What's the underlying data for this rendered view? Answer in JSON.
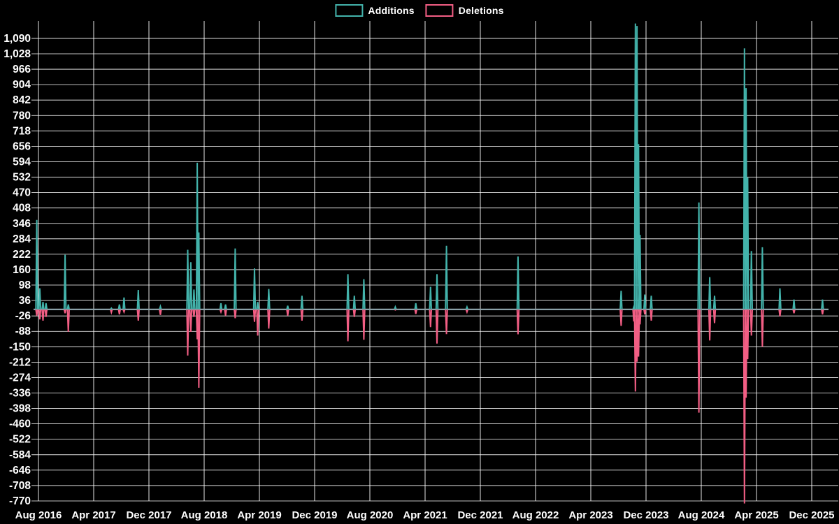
{
  "chart_data": {
    "type": "line",
    "title": "",
    "subtitle": "",
    "background_color": "#000000",
    "grid": true,
    "grid_color": "#ffffff",
    "baseline_color": "#8ba1a8",
    "legend_position": "top-center",
    "y_axis": {
      "min": -770,
      "max": 1090,
      "step": 62,
      "tick_labels_formatted": [
        "1,090",
        "1,028",
        "966",
        "904",
        "842",
        "780",
        "718",
        "656",
        "594",
        "532",
        "470",
        "408",
        "346",
        "284",
        "222",
        "160",
        "98",
        "36",
        "-26",
        "-88",
        "-150",
        "-212",
        "-274",
        "-336",
        "-398",
        "-460",
        "-522",
        "-584",
        "-646",
        "-708",
        "-770"
      ]
    },
    "x_tick_labels": [
      "Aug 2016",
      "Apr 2017",
      "Dec 2017",
      "Aug 2018",
      "Apr 2019",
      "Dec 2019",
      "Aug 2020",
      "Apr 2021",
      "Dec 2021",
      "Aug 2022",
      "Apr 2023",
      "Dec 2023",
      "Aug 2024",
      "Apr 2025",
      "Dec 2025"
    ],
    "series": [
      {
        "name": "Additions",
        "color": "#43b3ab",
        "value_key": "additions"
      },
      {
        "name": "Deletions",
        "color": "#f25e84",
        "value_key": "deletions"
      }
    ],
    "weeks": [
      {
        "date": "2016-07-24",
        "additions": 360,
        "deletions": -25
      },
      {
        "date": "2016-08-07",
        "additions": 85,
        "deletions": -40
      },
      {
        "date": "2016-08-21",
        "additions": 30,
        "deletions": -45
      },
      {
        "date": "2016-09-04",
        "additions": 25,
        "deletions": -30
      },
      {
        "date": "2016-11-27",
        "additions": 220,
        "deletions": -15
      },
      {
        "date": "2016-12-11",
        "additions": 20,
        "deletions": -90
      },
      {
        "date": "2017-06-18",
        "additions": 5,
        "deletions": -12
      },
      {
        "date": "2017-07-23",
        "additions": 20,
        "deletions": -20
      },
      {
        "date": "2017-08-13",
        "additions": 48,
        "deletions": -10
      },
      {
        "date": "2017-10-15",
        "additions": 78,
        "deletions": -45
      },
      {
        "date": "2018-01-21",
        "additions": 12,
        "deletions": -22
      },
      {
        "date": "2018-05-20",
        "additions": 240,
        "deletions": -185
      },
      {
        "date": "2018-06-03",
        "additions": 190,
        "deletions": -90
      },
      {
        "date": "2018-06-17",
        "additions": 80,
        "deletions": -30
      },
      {
        "date": "2018-07-01",
        "additions": 590,
        "deletions": -120
      },
      {
        "date": "2018-07-08",
        "additions": 310,
        "deletions": -315
      },
      {
        "date": "2018-10-14",
        "additions": 25,
        "deletions": -10
      },
      {
        "date": "2018-11-04",
        "additions": 20,
        "deletions": -25
      },
      {
        "date": "2018-12-16",
        "additions": 245,
        "deletions": -35
      },
      {
        "date": "2019-03-10",
        "additions": 165,
        "deletions": -50
      },
      {
        "date": "2019-03-24",
        "additions": 30,
        "deletions": -105
      },
      {
        "date": "2019-05-12",
        "additions": 82,
        "deletions": -77
      },
      {
        "date": "2019-08-04",
        "additions": 15,
        "deletions": -25
      },
      {
        "date": "2019-10-06",
        "additions": 55,
        "deletions": -45
      },
      {
        "date": "2020-04-26",
        "additions": 142,
        "deletions": -128
      },
      {
        "date": "2020-05-24",
        "additions": 55,
        "deletions": -30
      },
      {
        "date": "2020-07-05",
        "additions": 122,
        "deletions": -122
      },
      {
        "date": "2020-11-22",
        "additions": 10,
        "deletions": -2
      },
      {
        "date": "2021-02-21",
        "additions": 25,
        "deletions": -18
      },
      {
        "date": "2021-04-25",
        "additions": 91,
        "deletions": -71
      },
      {
        "date": "2021-05-23",
        "additions": 142,
        "deletions": -137
      },
      {
        "date": "2021-07-04",
        "additions": 256,
        "deletions": -99
      },
      {
        "date": "2021-10-03",
        "additions": 10,
        "deletions": -10
      },
      {
        "date": "2022-05-15",
        "additions": 213,
        "deletions": -100
      },
      {
        "date": "2023-08-13",
        "additions": 75,
        "deletions": -66
      },
      {
        "date": "2023-10-08",
        "additions": 10,
        "deletions": -48
      },
      {
        "date": "2023-10-15",
        "additions": 1150,
        "deletions": -330
      },
      {
        "date": "2023-10-22",
        "additions": 1140,
        "deletions": -210
      },
      {
        "date": "2023-10-29",
        "additions": 665,
        "deletions": -190
      },
      {
        "date": "2023-11-05",
        "additions": 300,
        "deletions": -60
      },
      {
        "date": "2023-11-26",
        "additions": 60,
        "deletions": -20
      },
      {
        "date": "2023-12-24",
        "additions": 55,
        "deletions": -45
      },
      {
        "date": "2024-07-21",
        "additions": 430,
        "deletions": -415
      },
      {
        "date": "2024-09-08",
        "additions": 130,
        "deletions": -125
      },
      {
        "date": "2024-09-29",
        "additions": 55,
        "deletions": -55
      },
      {
        "date": "2025-02-09",
        "additions": 1050,
        "deletions": -780
      },
      {
        "date": "2025-02-16",
        "additions": 890,
        "deletions": -355
      },
      {
        "date": "2025-02-23",
        "additions": 530,
        "deletions": -200
      },
      {
        "date": "2025-03-09",
        "additions": 235,
        "deletions": -105
      },
      {
        "date": "2025-04-27",
        "additions": 250,
        "deletions": -150
      },
      {
        "date": "2025-07-13",
        "additions": 85,
        "deletions": -28
      },
      {
        "date": "2025-09-14",
        "additions": 40,
        "deletions": -15
      },
      {
        "date": "2026-01-18",
        "additions": 40,
        "deletions": -20
      }
    ]
  }
}
